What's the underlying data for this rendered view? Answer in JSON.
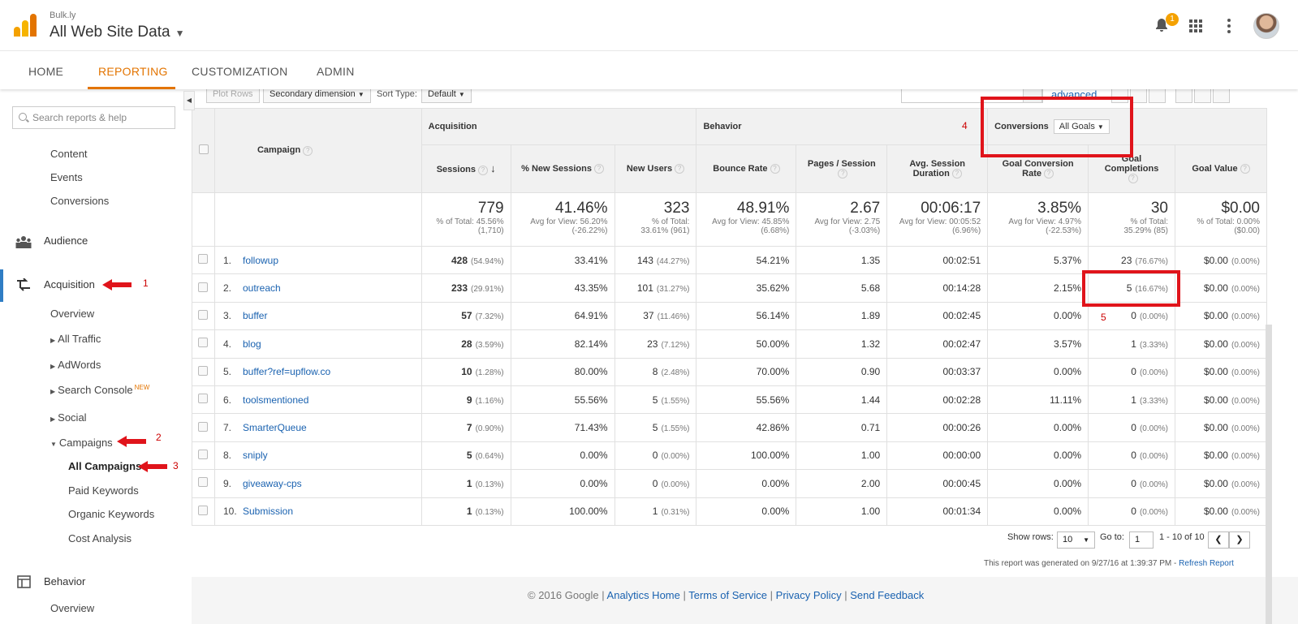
{
  "header": {
    "account": "Bulk.ly",
    "property": "All Web Site Data",
    "notification_count": "1"
  },
  "nav": {
    "tabs": [
      {
        "label": "HOME"
      },
      {
        "label": "REPORTING"
      },
      {
        "label": "CUSTOMIZATION"
      },
      {
        "label": "ADMIN"
      }
    ],
    "active_tab": "REPORTING",
    "accent_color": "#e37400"
  },
  "sidebar": {
    "search_placeholder": "Search reports & help",
    "items": {
      "content": "Content",
      "events": "Events",
      "conversions": "Conversions",
      "audience": "Audience",
      "acquisition": "Acquisition",
      "overview": "Overview",
      "all_traffic": "All Traffic",
      "adwords": "AdWords",
      "search_console": "Search Console",
      "search_console_tag": "NEW",
      "social": "Social",
      "campaigns": "Campaigns",
      "all_campaigns": "All Campaigns",
      "paid_keywords": "Paid Keywords",
      "organic_keywords": "Organic Keywords",
      "cost_analysis": "Cost Analysis",
      "behavior": "Behavior",
      "behavior_overview": "Overview"
    },
    "annotations": [
      "1",
      "2",
      "3"
    ]
  },
  "toolbar": {
    "plot_rows": "Plot Rows",
    "secondary_dimension": "Secondary dimension",
    "sort_type_label": "Sort Type:",
    "sort_type_value": "Default",
    "advanced": "advanced"
  },
  "table": {
    "primary_header": "Campaign",
    "groups": {
      "acquisition": "Acquisition",
      "behavior": "Behavior",
      "conversions": "Conversions"
    },
    "conversions_select": "All Goals",
    "columns": [
      "Sessions",
      "% New Sessions",
      "New Users",
      "Bounce Rate",
      "Pages / Session",
      "Avg. Session Duration",
      "Goal Conversion Rate",
      "Goal Completions",
      "Goal Value"
    ],
    "totals": [
      {
        "value": "779",
        "sub1": "% of Total: 45.56%",
        "sub2": "(1,710)"
      },
      {
        "value": "41.46%",
        "sub1": "Avg for View: 56.20%",
        "sub2": "(-26.22%)"
      },
      {
        "value": "323",
        "sub1": "% of Total:",
        "sub2": "33.61% (961)"
      },
      {
        "value": "48.91%",
        "sub1": "Avg for View: 45.85%",
        "sub2": "(6.68%)"
      },
      {
        "value": "2.67",
        "sub1": "Avg for View: 2.75",
        "sub2": "(-3.03%)"
      },
      {
        "value": "00:06:17",
        "sub1": "Avg for View: 00:05:52",
        "sub2": "(6.96%)"
      },
      {
        "value": "3.85%",
        "sub1": "Avg for View: 4.97%",
        "sub2": "(-22.53%)"
      },
      {
        "value": "30",
        "sub1": "% of Total:",
        "sub2": "35.29% (85)"
      },
      {
        "value": "$0.00",
        "sub1": "% of Total: 0.00%",
        "sub2": "($0.00)"
      }
    ],
    "rows": [
      {
        "n": "1.",
        "campaign": "followup",
        "sessions": "428",
        "sessions_pct": "(54.94%)",
        "new_sessions": "33.41%",
        "new_users": "143",
        "new_users_pct": "(44.27%)",
        "bounce": "54.21%",
        "pages": "1.35",
        "duration": "00:02:51",
        "conv_rate": "5.37%",
        "completions": "23",
        "completions_pct": "(76.67%)",
        "value": "$0.00",
        "value_pct": "(0.00%)"
      },
      {
        "n": "2.",
        "campaign": "outreach",
        "sessions": "233",
        "sessions_pct": "(29.91%)",
        "new_sessions": "43.35%",
        "new_users": "101",
        "new_users_pct": "(31.27%)",
        "bounce": "35.62%",
        "pages": "5.68",
        "duration": "00:14:28",
        "conv_rate": "2.15%",
        "completions": "5",
        "completions_pct": "(16.67%)",
        "value": "$0.00",
        "value_pct": "(0.00%)"
      },
      {
        "n": "3.",
        "campaign": "buffer",
        "sessions": "57",
        "sessions_pct": "(7.32%)",
        "new_sessions": "64.91%",
        "new_users": "37",
        "new_users_pct": "(11.46%)",
        "bounce": "56.14%",
        "pages": "1.89",
        "duration": "00:02:45",
        "conv_rate": "0.00%",
        "completions": "0",
        "completions_pct": "(0.00%)",
        "value": "$0.00",
        "value_pct": "(0.00%)"
      },
      {
        "n": "4.",
        "campaign": "blog",
        "sessions": "28",
        "sessions_pct": "(3.59%)",
        "new_sessions": "82.14%",
        "new_users": "23",
        "new_users_pct": "(7.12%)",
        "bounce": "50.00%",
        "pages": "1.32",
        "duration": "00:02:47",
        "conv_rate": "3.57%",
        "completions": "1",
        "completions_pct": "(3.33%)",
        "value": "$0.00",
        "value_pct": "(0.00%)"
      },
      {
        "n": "5.",
        "campaign": "buffer?ref=upflow.co",
        "sessions": "10",
        "sessions_pct": "(1.28%)",
        "new_sessions": "80.00%",
        "new_users": "8",
        "new_users_pct": "(2.48%)",
        "bounce": "70.00%",
        "pages": "0.90",
        "duration": "00:03:37",
        "conv_rate": "0.00%",
        "completions": "0",
        "completions_pct": "(0.00%)",
        "value": "$0.00",
        "value_pct": "(0.00%)"
      },
      {
        "n": "6.",
        "campaign": "toolsmentioned",
        "sessions": "9",
        "sessions_pct": "(1.16%)",
        "new_sessions": "55.56%",
        "new_users": "5",
        "new_users_pct": "(1.55%)",
        "bounce": "55.56%",
        "pages": "1.44",
        "duration": "00:02:28",
        "conv_rate": "11.11%",
        "completions": "1",
        "completions_pct": "(3.33%)",
        "value": "$0.00",
        "value_pct": "(0.00%)"
      },
      {
        "n": "7.",
        "campaign": "SmarterQueue",
        "sessions": "7",
        "sessions_pct": "(0.90%)",
        "new_sessions": "71.43%",
        "new_users": "5",
        "new_users_pct": "(1.55%)",
        "bounce": "42.86%",
        "pages": "0.71",
        "duration": "00:00:26",
        "conv_rate": "0.00%",
        "completions": "0",
        "completions_pct": "(0.00%)",
        "value": "$0.00",
        "value_pct": "(0.00%)"
      },
      {
        "n": "8.",
        "campaign": "sniply",
        "sessions": "5",
        "sessions_pct": "(0.64%)",
        "new_sessions": "0.00%",
        "new_users": "0",
        "new_users_pct": "(0.00%)",
        "bounce": "100.00%",
        "pages": "1.00",
        "duration": "00:00:00",
        "conv_rate": "0.00%",
        "completions": "0",
        "completions_pct": "(0.00%)",
        "value": "$0.00",
        "value_pct": "(0.00%)"
      },
      {
        "n": "9.",
        "campaign": "giveaway-cps",
        "sessions": "1",
        "sessions_pct": "(0.13%)",
        "new_sessions": "0.00%",
        "new_users": "0",
        "new_users_pct": "(0.00%)",
        "bounce": "0.00%",
        "pages": "2.00",
        "duration": "00:00:45",
        "conv_rate": "0.00%",
        "completions": "0",
        "completions_pct": "(0.00%)",
        "value": "$0.00",
        "value_pct": "(0.00%)"
      },
      {
        "n": "10.",
        "campaign": "Submission",
        "sessions": "1",
        "sessions_pct": "(0.13%)",
        "new_sessions": "100.00%",
        "new_users": "1",
        "new_users_pct": "(0.31%)",
        "bounce": "0.00%",
        "pages": "1.00",
        "duration": "00:01:34",
        "conv_rate": "0.00%",
        "completions": "0",
        "completions_pct": "(0.00%)",
        "value": "$0.00",
        "value_pct": "(0.00%)"
      }
    ],
    "annotations": [
      "4",
      "5"
    ]
  },
  "pager": {
    "show_rows_label": "Show rows:",
    "show_rows_value": "10",
    "go_to_label": "Go to:",
    "go_to_value": "1",
    "range": "1 - 10 of 10"
  },
  "generated": {
    "text": "This report was generated on 9/27/16 at 1:39:37 PM -",
    "refresh": "Refresh Report"
  },
  "footer": {
    "copyright": "© 2016 Google",
    "links": [
      "Analytics Home",
      "Terms of Service",
      "Privacy Policy",
      "Send Feedback"
    ]
  },
  "colors": {
    "link": "#1a62b0",
    "annotation_red": "#e0141b"
  }
}
